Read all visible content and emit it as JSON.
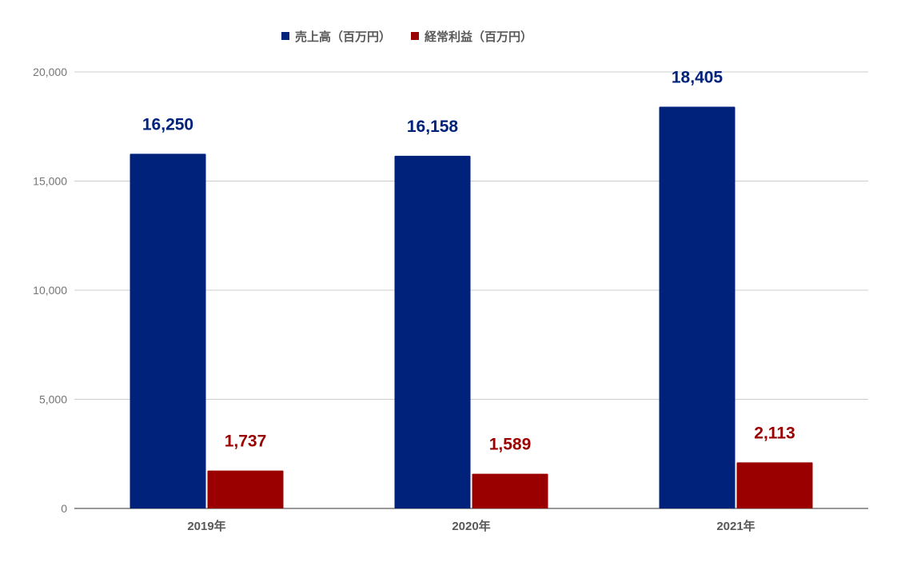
{
  "chart_data": {
    "type": "bar",
    "title": "",
    "xlabel": "",
    "ylabel": "",
    "categories": [
      "2019年",
      "2020年",
      "2021年"
    ],
    "series": [
      {
        "name": "売上高（百万円）",
        "color": "#00227a",
        "values": [
          16250,
          16158,
          18405
        ],
        "labels": [
          "16,250",
          "16,158",
          "18,405"
        ]
      },
      {
        "name": "経常利益（百万円）",
        "color": "#9a0000",
        "values": [
          1737,
          1589,
          2113
        ],
        "labels": [
          "1,737",
          "1,589",
          "2,113"
        ]
      }
    ],
    "ylim": [
      0,
      20000
    ],
    "yticks": [
      0,
      5000,
      10000,
      15000,
      20000
    ],
    "ytick_labels": [
      "0",
      "5,000",
      "10,000",
      "15,000",
      "20,000"
    ],
    "grid": true,
    "legend_position": "top-center"
  }
}
